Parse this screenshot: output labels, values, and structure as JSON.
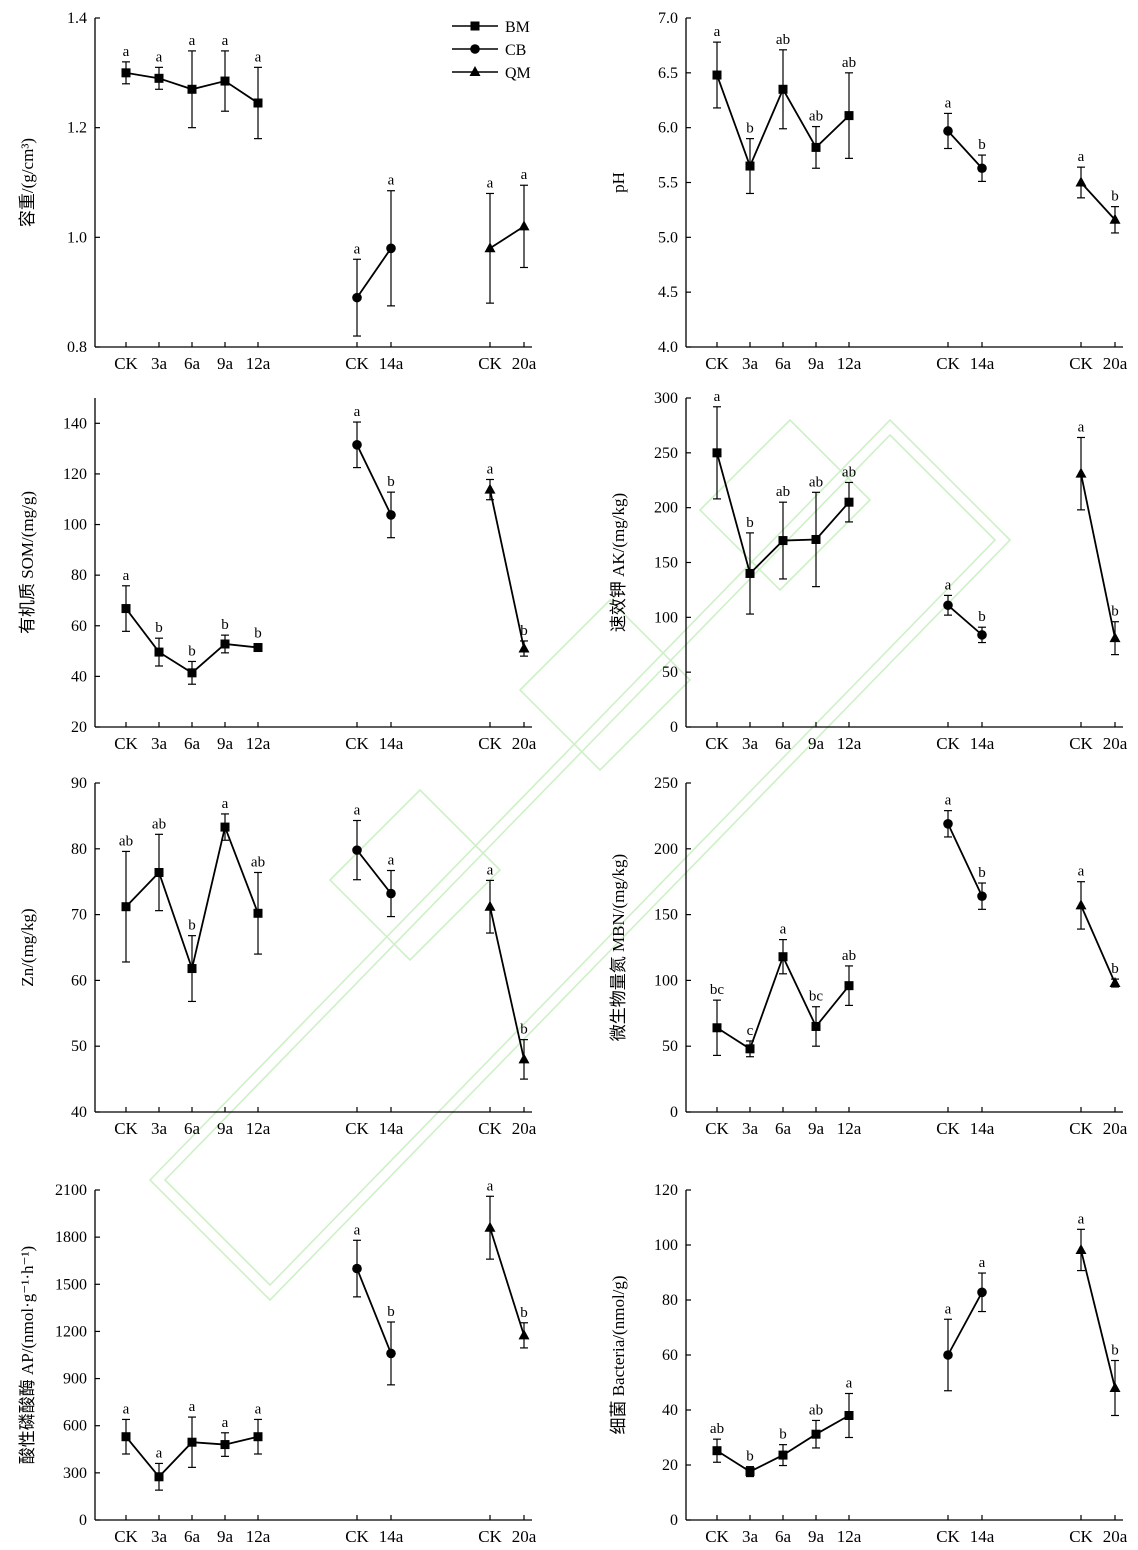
{
  "figure": {
    "legend": [
      {
        "name": "BM",
        "marker": "square"
      },
      {
        "name": "CB",
        "marker": "circle"
      },
      {
        "name": "QM",
        "marker": "triangle"
      }
    ],
    "category_labels": [
      "CK",
      "3a",
      "6a",
      "9a",
      "12a",
      "CK",
      "14a",
      "CK",
      "20a"
    ]
  },
  "chart_data": [
    {
      "type": "line",
      "panel": "bulk-density",
      "ylabel": "容重/(g/cm³)",
      "ylim": [
        0.8,
        1.4
      ],
      "yticks": [
        "0.8",
        "1.0",
        "1.2",
        "1.4"
      ],
      "series": [
        {
          "name": "BM",
          "values": [
            1.3,
            1.29,
            1.27,
            1.285,
            1.245
          ],
          "err_low": [
            0.02,
            0.02,
            0.07,
            0.055,
            0.065
          ],
          "err_high": [
            0.02,
            0.02,
            0.07,
            0.055,
            0.065
          ],
          "letters": [
            "a",
            "a",
            "a",
            "a",
            "a"
          ]
        },
        {
          "name": "CB",
          "values": [
            0.89,
            0.98
          ],
          "err_low": [
            0.07,
            0.105
          ],
          "err_high": [
            0.07,
            0.105
          ],
          "letters": [
            "a",
            "a"
          ]
        },
        {
          "name": "QM",
          "values": [
            0.98,
            1.02
          ],
          "err_low": [
            0.1,
            0.075
          ],
          "err_high": [
            0.1,
            0.075
          ],
          "letters": [
            "a",
            "a"
          ]
        }
      ]
    },
    {
      "type": "line",
      "panel": "ph",
      "ylabel": "pH",
      "ylim": [
        4.0,
        7.0
      ],
      "yticks": [
        "4.0",
        "4.5",
        "5.0",
        "5.5",
        "6.0",
        "6.5",
        "7.0"
      ],
      "series": [
        {
          "name": "BM",
          "values": [
            6.48,
            5.65,
            6.35,
            5.82,
            6.11
          ],
          "err_low": [
            0.3,
            0.25,
            0.36,
            0.19,
            0.39
          ],
          "err_high": [
            0.3,
            0.25,
            0.36,
            0.19,
            0.39
          ],
          "letters": [
            "a",
            "b",
            "ab",
            "ab",
            "ab"
          ]
        },
        {
          "name": "CB",
          "values": [
            5.97,
            5.63
          ],
          "err_low": [
            0.16,
            0.12
          ],
          "err_high": [
            0.16,
            0.12
          ],
          "letters": [
            "a",
            "b"
          ]
        },
        {
          "name": "QM",
          "values": [
            5.5,
            5.16
          ],
          "err_low": [
            0.14,
            0.12
          ],
          "err_high": [
            0.14,
            0.12
          ],
          "letters": [
            "a",
            "b"
          ]
        }
      ]
    },
    {
      "type": "line",
      "panel": "som",
      "ylabel": "有机质 SOM/(mg/g)",
      "ylim": [
        20,
        150
      ],
      "yticks": [
        "20",
        "40",
        "60",
        "80",
        "100",
        "120",
        "140"
      ],
      "series": [
        {
          "name": "BM",
          "values": [
            66.8,
            49.6,
            41.4,
            52.8,
            51.4
          ],
          "err_low": [
            9.0,
            5.5,
            4.5,
            3.5,
            1.5
          ],
          "err_high": [
            9.0,
            5.5,
            4.5,
            3.5,
            1.5
          ],
          "letters": [
            "a",
            "b",
            "b",
            "b",
            "b"
          ]
        },
        {
          "name": "CB",
          "values": [
            131.5,
            103.8
          ],
          "err_low": [
            9.0,
            9.0
          ],
          "err_high": [
            9.0,
            9.0
          ],
          "letters": [
            "a",
            "b"
          ]
        },
        {
          "name": "QM",
          "values": [
            113.8,
            51.0
          ],
          "err_low": [
            4.0,
            3.0
          ],
          "err_high": [
            4.0,
            3.0
          ],
          "letters": [
            "a",
            "b"
          ]
        }
      ]
    },
    {
      "type": "line",
      "panel": "ak",
      "ylabel": "速效钾 AK/(mg/kg)",
      "ylim": [
        0,
        300
      ],
      "yticks": [
        "0",
        "50",
        "100",
        "150",
        "200",
        "250",
        "300"
      ],
      "series": [
        {
          "name": "BM",
          "values": [
            250,
            140,
            170,
            171,
            205
          ],
          "err_low": [
            42,
            37,
            35,
            43,
            18
          ],
          "err_high": [
            42,
            37,
            35,
            43,
            18
          ],
          "letters": [
            "a",
            "b",
            "ab",
            "ab",
            "ab"
          ]
        },
        {
          "name": "CB",
          "values": [
            111,
            84
          ],
          "err_low": [
            9,
            7
          ],
          "err_high": [
            9,
            7
          ],
          "letters": [
            "a",
            "b"
          ]
        },
        {
          "name": "QM",
          "values": [
            231,
            81
          ],
          "err_low": [
            33,
            15
          ],
          "err_high": [
            33,
            15
          ],
          "letters": [
            "a",
            "b"
          ]
        }
      ]
    },
    {
      "type": "line",
      "panel": "zn",
      "ylabel": "Zn/(mg/kg)",
      "ylim": [
        40,
        90
      ],
      "yticks": [
        "40",
        "50",
        "60",
        "70",
        "80",
        "90"
      ],
      "series": [
        {
          "name": "BM",
          "values": [
            71.2,
            76.4,
            61.8,
            83.3,
            70.2
          ],
          "err_low": [
            8.4,
            5.8,
            5.0,
            2.0,
            6.2
          ],
          "err_high": [
            8.4,
            5.8,
            5.0,
            2.0,
            6.2
          ],
          "letters": [
            "ab",
            "ab",
            "b",
            "a",
            "ab"
          ]
        },
        {
          "name": "CB",
          "values": [
            79.8,
            73.2
          ],
          "err_low": [
            4.5,
            3.5
          ],
          "err_high": [
            4.5,
            3.5
          ],
          "letters": [
            "a",
            "a"
          ]
        },
        {
          "name": "QM",
          "values": [
            71.2,
            48.0
          ],
          "err_low": [
            4.0,
            3.0
          ],
          "err_high": [
            4.0,
            3.0
          ],
          "letters": [
            "a",
            "b"
          ]
        }
      ]
    },
    {
      "type": "line",
      "panel": "mbn",
      "ylabel": "微生物量氮 MBN/(mg/kg)",
      "ylim": [
        0,
        250
      ],
      "yticks": [
        "0",
        "50",
        "100",
        "150",
        "200",
        "250"
      ],
      "series": [
        {
          "name": "BM",
          "values": [
            64,
            48,
            118,
            65,
            96
          ],
          "err_low": [
            21,
            6,
            13,
            15,
            15
          ],
          "err_high": [
            21,
            6,
            13,
            15,
            15
          ],
          "letters": [
            "bc",
            "c",
            "a",
            "bc",
            "ab"
          ]
        },
        {
          "name": "CB",
          "values": [
            219,
            164
          ],
          "err_low": [
            10,
            10
          ],
          "err_high": [
            10,
            10
          ],
          "letters": [
            "a",
            "b"
          ]
        },
        {
          "name": "QM",
          "values": [
            157,
            98
          ],
          "err_low": [
            18,
            3
          ],
          "err_high": [
            18,
            3
          ],
          "letters": [
            "a",
            "b"
          ]
        }
      ]
    },
    {
      "type": "line",
      "panel": "ap",
      "ylabel": "酸性磷酸酶 AP/(nmol·g⁻¹·h⁻¹)",
      "ylim": [
        0,
        2100
      ],
      "yticks": [
        "0",
        "300",
        "600",
        "900",
        "1200",
        "1500",
        "1800",
        "2100"
      ],
      "series": [
        {
          "name": "BM",
          "values": [
            530,
            275,
            495,
            480,
            530
          ],
          "err_low": [
            110,
            85,
            160,
            75,
            110
          ],
          "err_high": [
            110,
            85,
            160,
            75,
            110
          ],
          "letters": [
            "a",
            "a",
            "a",
            "a",
            "a"
          ]
        },
        {
          "name": "CB",
          "values": [
            1600,
            1060
          ],
          "err_low": [
            180,
            200
          ],
          "err_high": [
            180,
            200
          ],
          "letters": [
            "a",
            "b"
          ]
        },
        {
          "name": "QM",
          "values": [
            1860,
            1175
          ],
          "err_low": [
            200,
            80
          ],
          "err_high": [
            200,
            80
          ],
          "letters": [
            "a",
            "b"
          ]
        }
      ]
    },
    {
      "type": "line",
      "panel": "bacteria",
      "ylabel": "细菌 Bacteria/(nmol/g)",
      "ylim": [
        0,
        120
      ],
      "yticks": [
        "0",
        "20",
        "40",
        "60",
        "80",
        "100",
        "120"
      ],
      "series": [
        {
          "name": "BM",
          "values": [
            25.2,
            17.6,
            23.6,
            31.2,
            38.0
          ],
          "err_low": [
            4.2,
            1.8,
            3.8,
            5.0,
            8.0
          ],
          "err_high": [
            4.2,
            1.8,
            3.8,
            5.0,
            8.0
          ],
          "letters": [
            "ab",
            "b",
            "b",
            "ab",
            "a"
          ]
        },
        {
          "name": "CB",
          "values": [
            60.0,
            82.8
          ],
          "err_low": [
            13.0,
            7.0
          ],
          "err_high": [
            13.0,
            7.0
          ],
          "letters": [
            "a",
            "a"
          ]
        },
        {
          "name": "QM",
          "values": [
            98.2,
            48.0
          ],
          "err_low": [
            7.5,
            10.0
          ],
          "err_high": [
            7.5,
            10.0
          ],
          "letters": [
            "a",
            "b"
          ]
        }
      ]
    }
  ]
}
